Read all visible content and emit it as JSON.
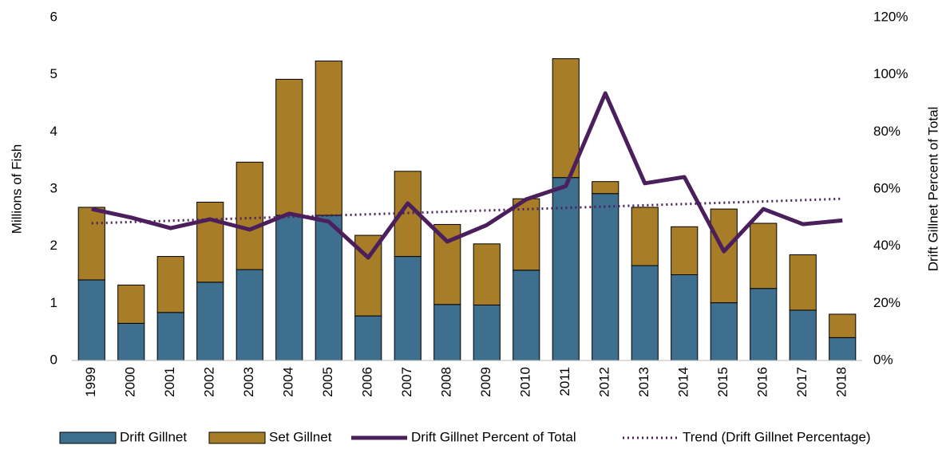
{
  "chart_data": {
    "type": "bar",
    "stacked": true,
    "categories": [
      "1999",
      "2000",
      "2001",
      "2002",
      "2003",
      "2004",
      "2005",
      "2006",
      "2007",
      "2008",
      "2009",
      "2010",
      "2011",
      "2012",
      "2013",
      "2014",
      "2015",
      "2016",
      "2017",
      "2018"
    ],
    "y_label": "Millions of Fish",
    "y2_label": "Drift Gillnet Percent of Total",
    "ylim": [
      0,
      6
    ],
    "yticks": [
      0,
      1,
      2,
      3,
      4,
      5,
      6
    ],
    "y2lim": [
      0,
      120
    ],
    "y2ticks": [
      {
        "value": 0,
        "label": "0%"
      },
      {
        "value": 20,
        "label": "20%"
      },
      {
        "value": 40,
        "label": "40%"
      },
      {
        "value": 60,
        "label": "60%"
      },
      {
        "value": 80,
        "label": "80%"
      },
      {
        "value": 100,
        "label": "100%"
      },
      {
        "value": 120,
        "label": "120%"
      }
    ],
    "series": [
      {
        "name": "Drift Gillnet",
        "type": "bar",
        "color": "#3e6f8f",
        "values": [
          1.41,
          0.65,
          0.84,
          1.37,
          1.59,
          2.54,
          2.54,
          0.78,
          1.82,
          0.98,
          0.97,
          1.58,
          3.2,
          2.92,
          1.66,
          1.5,
          1.01,
          1.26,
          0.88,
          0.4
        ]
      },
      {
        "name": "Set Gillnet",
        "type": "bar",
        "color": "#a77d27",
        "values": [
          1.27,
          0.67,
          0.98,
          1.4,
          1.88,
          2.38,
          2.7,
          1.41,
          1.49,
          1.4,
          1.07,
          1.25,
          2.08,
          0.21,
          1.02,
          0.84,
          1.64,
          1.14,
          0.97,
          0.41
        ]
      },
      {
        "name": "Drift Gillnet Percent of Total",
        "type": "line",
        "axis": "y2",
        "color": "#4b1f5c",
        "values": [
          53,
          50,
          46.3,
          49.4,
          45.8,
          51.4,
          48.6,
          36,
          55,
          41.6,
          47.4,
          56.4,
          61,
          93.5,
          62,
          64.2,
          38.2,
          53,
          47.7,
          49
        ]
      },
      {
        "name": "Trend (Drift Gillnet Percentage)",
        "type": "line",
        "axis": "y2",
        "dash": "dotted",
        "color": "#4b1f5c",
        "values": [
          48,
          48.45,
          48.9,
          49.35,
          49.8,
          50.25,
          50.7,
          51.15,
          51.6,
          52.05,
          52.5,
          52.95,
          53.4,
          53.85,
          54.3,
          54.75,
          55.2,
          55.65,
          56.1,
          56.6
        ]
      }
    ]
  }
}
